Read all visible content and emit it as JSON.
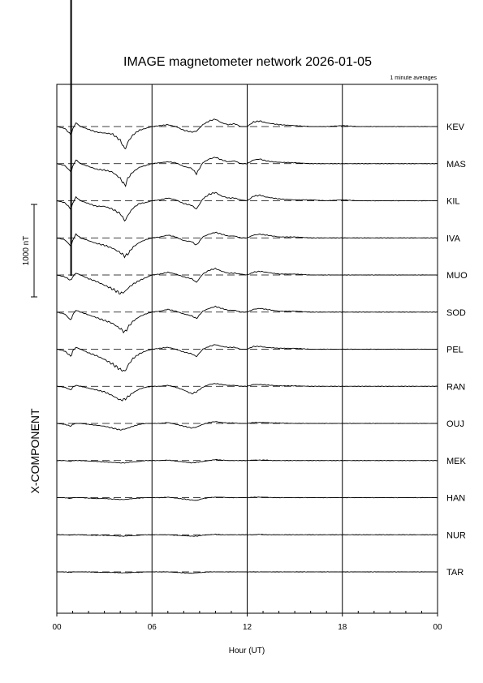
{
  "chart_data": {
    "type": "line",
    "title": "IMAGE magnetometer network 2026-01-05",
    "subtitle": "1 minute averages",
    "xlabel": "Hour (UT)",
    "component_label": "X-COMPONENT",
    "scale_bar_label": "1000 nT",
    "scale_bar_value_nT": 1000,
    "x_tick_labels": [
      "00",
      "06",
      "12",
      "18",
      "00"
    ],
    "x_tick_hours": [
      0,
      6,
      12,
      18,
      24
    ],
    "xlim_hours": [
      0,
      24
    ],
    "stations": [
      "KEV",
      "MAS",
      "KIL",
      "IVA",
      "MUO",
      "SOD",
      "PEL",
      "RAN",
      "OUJ",
      "MEK",
      "HAN",
      "NUR",
      "TAR"
    ],
    "series_hours": [
      0,
      0.5,
      0.9,
      1.0,
      1.2,
      1.5,
      2.0,
      2.5,
      3.0,
      3.5,
      4.0,
      4.3,
      4.5,
      4.8,
      5.2,
      5.6,
      6.0,
      6.5,
      7.0,
      7.5,
      8.0,
      8.5,
      8.8,
      9.2,
      9.6,
      10.0,
      10.4,
      10.8,
      11.2,
      11.6,
      12.0,
      12.4,
      12.8,
      13.2,
      13.6,
      14.0,
      15.0,
      16.0,
      17.0,
      18.0,
      19.0,
      20.0,
      21.0,
      22.0,
      23.0,
      24.0
    ],
    "series": [
      {
        "name": "KEV",
        "values": [
          0,
          -20,
          -90,
          -30,
          40,
          0,
          -30,
          -60,
          -70,
          -80,
          -150,
          -250,
          -160,
          -90,
          -40,
          -20,
          0,
          10,
          20,
          0,
          -40,
          -60,
          -50,
          20,
          60,
          80,
          40,
          20,
          30,
          0,
          0,
          50,
          60,
          40,
          30,
          20,
          10,
          0,
          0,
          10,
          0,
          0,
          0,
          0,
          0,
          0
        ]
      },
      {
        "name": "MAS",
        "values": [
          0,
          -20,
          -90,
          -30,
          40,
          0,
          -30,
          -60,
          -70,
          -90,
          -160,
          -240,
          -150,
          -90,
          -40,
          -20,
          0,
          10,
          20,
          10,
          -30,
          -50,
          -110,
          10,
          50,
          70,
          40,
          20,
          30,
          0,
          0,
          40,
          50,
          30,
          20,
          15,
          10,
          0,
          0,
          0,
          0,
          0,
          0,
          0,
          0,
          0
        ]
      },
      {
        "name": "KIL",
        "values": [
          0,
          -20,
          -90,
          -30,
          40,
          0,
          -30,
          -60,
          -60,
          -90,
          -140,
          -220,
          -150,
          -80,
          -30,
          -20,
          0,
          10,
          30,
          10,
          -30,
          -50,
          -90,
          20,
          70,
          90,
          50,
          30,
          30,
          10,
          0,
          50,
          60,
          40,
          30,
          20,
          10,
          10,
          0,
          10,
          0,
          0,
          0,
          0,
          0,
          0
        ]
      },
      {
        "name": "IVA",
        "values": [
          0,
          -20,
          -90,
          -30,
          40,
          0,
          -30,
          -60,
          -80,
          -110,
          -160,
          -200,
          -170,
          -100,
          -50,
          -20,
          0,
          10,
          30,
          10,
          -30,
          -40,
          -80,
          10,
          40,
          60,
          40,
          20,
          20,
          0,
          0,
          30,
          40,
          30,
          20,
          10,
          10,
          0,
          0,
          0,
          0,
          0,
          0,
          0,
          0,
          0
        ]
      },
      {
        "name": "MUO",
        "values": [
          0,
          -20,
          -60,
          -20,
          20,
          0,
          -40,
          -70,
          -110,
          -150,
          -200,
          -180,
          -140,
          -100,
          -60,
          -30,
          0,
          10,
          30,
          10,
          -20,
          -40,
          -80,
          10,
          50,
          70,
          40,
          20,
          20,
          10,
          0,
          30,
          40,
          30,
          20,
          10,
          10,
          0,
          0,
          0,
          0,
          0,
          0,
          0,
          0,
          0
        ]
      },
      {
        "name": "SOD",
        "values": [
          0,
          -20,
          -90,
          -30,
          20,
          0,
          -30,
          -60,
          -90,
          -120,
          -180,
          -220,
          -160,
          -100,
          -50,
          -20,
          0,
          10,
          30,
          10,
          -20,
          -40,
          -70,
          10,
          40,
          60,
          40,
          20,
          20,
          0,
          0,
          30,
          40,
          30,
          20,
          10,
          10,
          0,
          0,
          0,
          0,
          0,
          0,
          0,
          0,
          0
        ]
      },
      {
        "name": "PEL",
        "values": [
          0,
          -20,
          -80,
          -20,
          20,
          0,
          -40,
          -70,
          -110,
          -160,
          -220,
          -240,
          -170,
          -100,
          -50,
          -20,
          0,
          10,
          20,
          0,
          -30,
          -50,
          -80,
          0,
          30,
          50,
          30,
          20,
          20,
          0,
          0,
          30,
          30,
          20,
          15,
          10,
          10,
          0,
          0,
          0,
          0,
          0,
          0,
          0,
          0,
          0
        ]
      },
      {
        "name": "RAN",
        "values": [
          0,
          -10,
          -40,
          -10,
          10,
          0,
          -20,
          -40,
          -60,
          -100,
          -150,
          -140,
          -110,
          -70,
          -30,
          -10,
          0,
          0,
          10,
          -10,
          -40,
          -80,
          -60,
          -10,
          20,
          30,
          20,
          10,
          10,
          0,
          0,
          20,
          20,
          15,
          10,
          5,
          5,
          0,
          0,
          0,
          0,
          0,
          0,
          0,
          0,
          0
        ]
      },
      {
        "name": "OUJ",
        "values": [
          0,
          -10,
          -30,
          -10,
          0,
          0,
          -10,
          -20,
          -30,
          -50,
          -70,
          -60,
          -50,
          -30,
          -10,
          0,
          0,
          0,
          10,
          -10,
          -30,
          -50,
          -40,
          -10,
          10,
          20,
          10,
          5,
          5,
          0,
          0,
          10,
          10,
          10,
          5,
          5,
          0,
          0,
          0,
          0,
          0,
          0,
          0,
          0,
          0,
          0
        ]
      },
      {
        "name": "MEK",
        "values": [
          0,
          0,
          -10,
          0,
          0,
          0,
          -5,
          -10,
          -15,
          -20,
          -25,
          -25,
          -20,
          -15,
          -10,
          0,
          0,
          0,
          5,
          -5,
          -15,
          -25,
          -20,
          -10,
          0,
          10,
          5,
          0,
          0,
          0,
          0,
          5,
          5,
          5,
          0,
          0,
          0,
          0,
          0,
          0,
          0,
          0,
          0,
          0,
          0,
          0
        ]
      },
      {
        "name": "HAN",
        "values": [
          0,
          0,
          -10,
          0,
          0,
          0,
          -5,
          -10,
          -10,
          -15,
          -20,
          -20,
          -15,
          -10,
          -5,
          0,
          0,
          0,
          5,
          -5,
          -15,
          -25,
          -30,
          -10,
          0,
          5,
          5,
          0,
          0,
          0,
          0,
          5,
          5,
          5,
          0,
          0,
          0,
          0,
          0,
          0,
          0,
          0,
          0,
          0,
          0,
          0
        ]
      },
      {
        "name": "NUR",
        "values": [
          0,
          0,
          -5,
          0,
          0,
          0,
          -5,
          -5,
          -5,
          -10,
          -15,
          -15,
          -10,
          -10,
          -5,
          0,
          0,
          0,
          0,
          -5,
          -10,
          -15,
          -15,
          -5,
          0,
          5,
          0,
          0,
          0,
          0,
          0,
          0,
          5,
          0,
          0,
          0,
          0,
          0,
          0,
          0,
          0,
          0,
          0,
          0,
          0,
          0
        ]
      },
      {
        "name": "TAR",
        "values": [
          0,
          0,
          -5,
          0,
          0,
          0,
          0,
          -5,
          -5,
          -5,
          -10,
          -10,
          -10,
          -5,
          -5,
          0,
          0,
          0,
          0,
          -5,
          -10,
          -15,
          -10,
          -5,
          0,
          0,
          0,
          0,
          0,
          0,
          0,
          0,
          0,
          0,
          0,
          0,
          0,
          0,
          0,
          0,
          0,
          0,
          0,
          0,
          0,
          0
        ]
      }
    ],
    "vertical_marker": {
      "hour": 0.9
    },
    "grid": "vertical-6h"
  }
}
